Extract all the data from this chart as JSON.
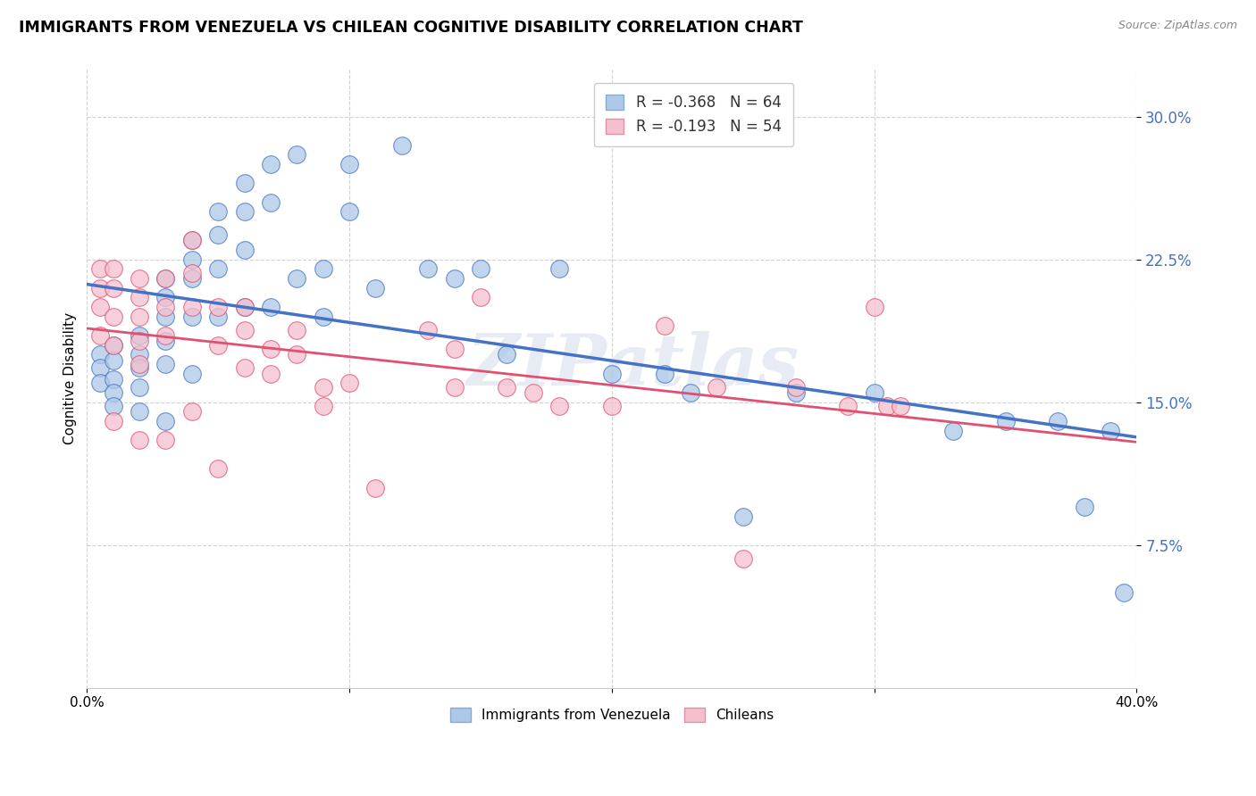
{
  "title": "IMMIGRANTS FROM VENEZUELA VS CHILEAN COGNITIVE DISABILITY CORRELATION CHART",
  "source": "Source: ZipAtlas.com",
  "ylabel": "Cognitive Disability",
  "yticks": [
    "7.5%",
    "15.0%",
    "22.5%",
    "30.0%"
  ],
  "ytick_vals": [
    0.075,
    0.15,
    0.225,
    0.3
  ],
  "xlim": [
    0.0,
    0.4
  ],
  "ylim": [
    0.0,
    0.325
  ],
  "color_blue": "#adc8e8",
  "color_pink": "#f5c0ce",
  "line_blue": "#4472c4",
  "line_pink": "#e05070",
  "watermark": "ZIPatlas",
  "blue_scatter_x": [
    0.005,
    0.005,
    0.005,
    0.01,
    0.01,
    0.01,
    0.01,
    0.01,
    0.02,
    0.02,
    0.02,
    0.02,
    0.02,
    0.03,
    0.03,
    0.03,
    0.03,
    0.03,
    0.03,
    0.04,
    0.04,
    0.04,
    0.04,
    0.04,
    0.05,
    0.05,
    0.05,
    0.05,
    0.06,
    0.06,
    0.06,
    0.06,
    0.07,
    0.07,
    0.07,
    0.08,
    0.08,
    0.09,
    0.09,
    0.1,
    0.1,
    0.11,
    0.12,
    0.13,
    0.14,
    0.15,
    0.16,
    0.18,
    0.2,
    0.22,
    0.23,
    0.25,
    0.27,
    0.3,
    0.33,
    0.35,
    0.37,
    0.38,
    0.39,
    0.395
  ],
  "blue_scatter_y": [
    0.175,
    0.168,
    0.16,
    0.18,
    0.172,
    0.162,
    0.155,
    0.148,
    0.185,
    0.175,
    0.168,
    0.158,
    0.145,
    0.215,
    0.205,
    0.195,
    0.182,
    0.17,
    0.14,
    0.235,
    0.225,
    0.215,
    0.195,
    0.165,
    0.25,
    0.238,
    0.22,
    0.195,
    0.265,
    0.25,
    0.23,
    0.2,
    0.275,
    0.255,
    0.2,
    0.28,
    0.215,
    0.22,
    0.195,
    0.275,
    0.25,
    0.21,
    0.285,
    0.22,
    0.215,
    0.22,
    0.175,
    0.22,
    0.165,
    0.165,
    0.155,
    0.09,
    0.155,
    0.155,
    0.135,
    0.14,
    0.14,
    0.095,
    0.135,
    0.05
  ],
  "pink_scatter_x": [
    0.005,
    0.005,
    0.005,
    0.005,
    0.01,
    0.01,
    0.01,
    0.01,
    0.01,
    0.02,
    0.02,
    0.02,
    0.02,
    0.02,
    0.02,
    0.03,
    0.03,
    0.03,
    0.03,
    0.04,
    0.04,
    0.04,
    0.04,
    0.05,
    0.05,
    0.05,
    0.06,
    0.06,
    0.06,
    0.07,
    0.07,
    0.08,
    0.08,
    0.09,
    0.09,
    0.1,
    0.11,
    0.13,
    0.14,
    0.14,
    0.15,
    0.16,
    0.17,
    0.18,
    0.2,
    0.22,
    0.24,
    0.25,
    0.27,
    0.29,
    0.3,
    0.305,
    0.31
  ],
  "pink_scatter_y": [
    0.22,
    0.21,
    0.2,
    0.185,
    0.22,
    0.21,
    0.195,
    0.18,
    0.14,
    0.215,
    0.205,
    0.195,
    0.182,
    0.17,
    0.13,
    0.215,
    0.2,
    0.185,
    0.13,
    0.235,
    0.218,
    0.2,
    0.145,
    0.2,
    0.18,
    0.115,
    0.2,
    0.188,
    0.168,
    0.178,
    0.165,
    0.188,
    0.175,
    0.158,
    0.148,
    0.16,
    0.105,
    0.188,
    0.178,
    0.158,
    0.205,
    0.158,
    0.155,
    0.148,
    0.148,
    0.19,
    0.158,
    0.068,
    0.158,
    0.148,
    0.2,
    0.148,
    0.148
  ]
}
